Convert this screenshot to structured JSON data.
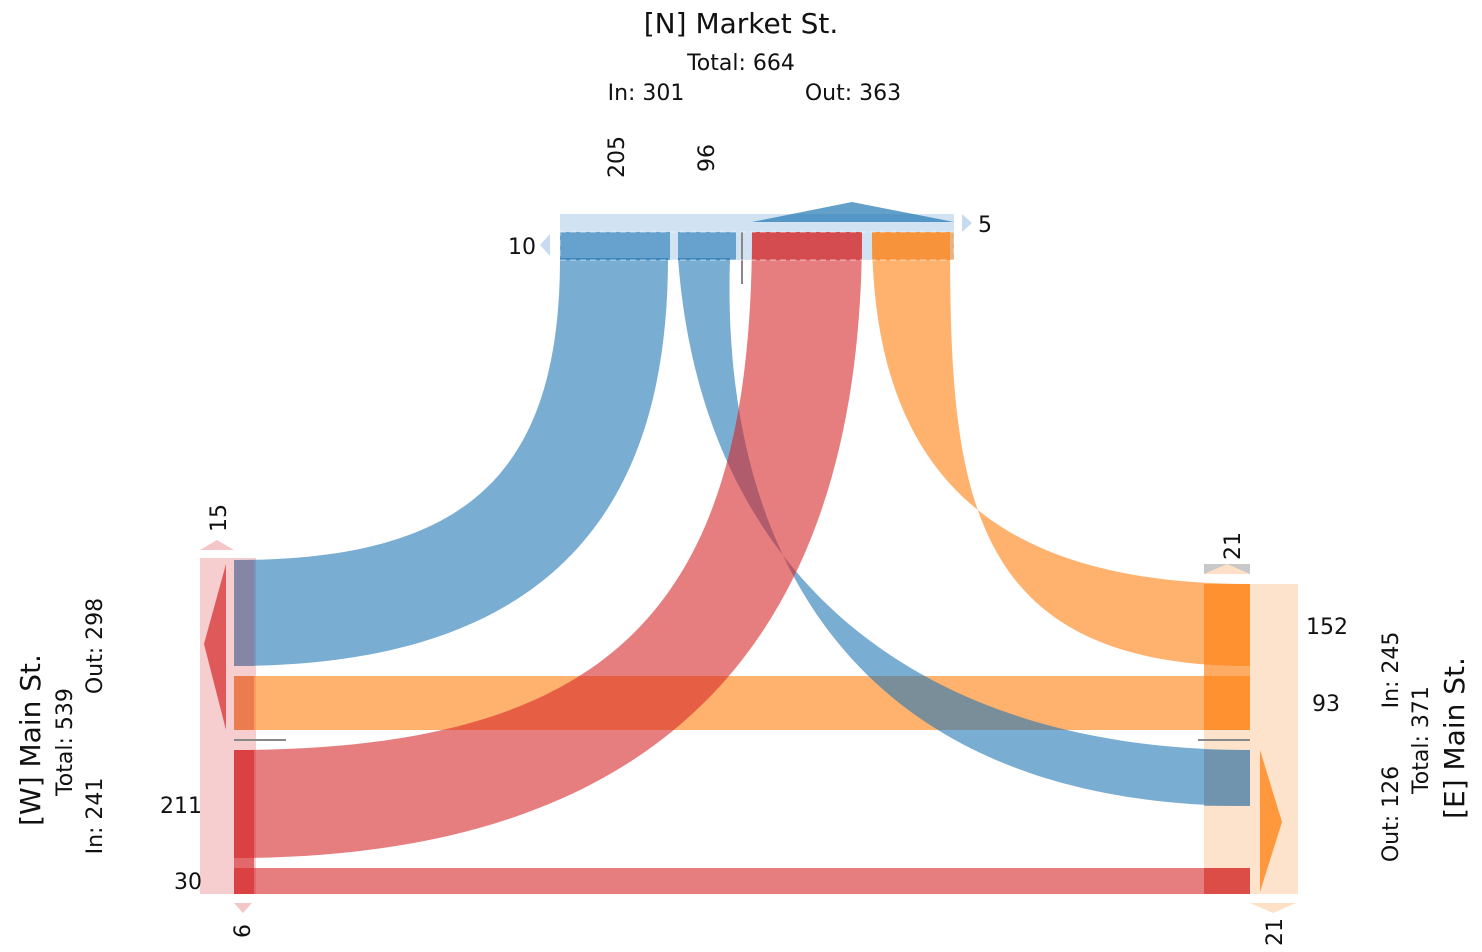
{
  "colors": {
    "north": "#1f77b4",
    "west": "#d62728",
    "east": "#ff7f0e",
    "neutral": "#999999"
  },
  "north": {
    "name": "[N] Market St.",
    "total": "Total: 664",
    "in": "In: 301",
    "out": "Out: 363",
    "flows": {
      "to_west": "205",
      "to_east": "96",
      "uturn": "10",
      "right_edge": "5"
    }
  },
  "west": {
    "name": "[W] Main St.",
    "total": "Total: 539",
    "in": "In: 241",
    "out": "Out: 298",
    "flows": {
      "to_north": "211",
      "to_east": "30",
      "top_edge": "15",
      "bottom_edge": "6"
    }
  },
  "east": {
    "name": "[E] Main St.",
    "total": "Total: 371",
    "in": "In: 245",
    "out": "Out: 126",
    "flows": {
      "to_north": "152",
      "to_west": "93",
      "top_edge": "21",
      "bottom_edge": "21"
    }
  }
}
